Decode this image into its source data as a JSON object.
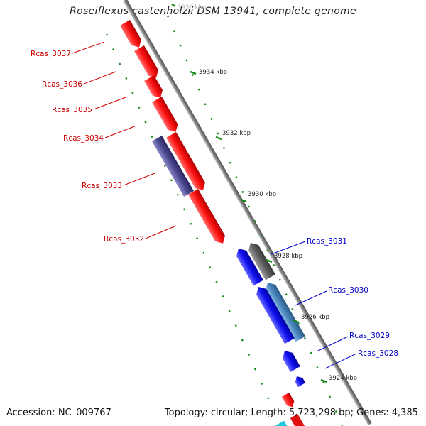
{
  "title": "Roseiflexus castenholzii DSM 13941, complete genome",
  "footer": {
    "accession": "Accession: NC_009767",
    "topology": "Topology: circular; Length: 5,723,298 bp; Genes: 4,385"
  },
  "colors": {
    "forward_gene": "#ff1010",
    "reverse_gene": "#1010f0",
    "forward_label": "#cc0000",
    "reverse_label": "#0000cc",
    "tick": "#1a8a1a",
    "backbone": "#888888"
  },
  "partial_top_tick_label": "3936 kbp",
  "ticks": [
    "3934 kbp",
    "3932 kbp",
    "3930 kbp",
    "3928 kbp",
    "3926 kbp",
    "3924 kbp"
  ],
  "genes_forward": [
    "Rcas_3037",
    "Rcas_3036",
    "Rcas_3035",
    "Rcas_3034",
    "Rcas_3033",
    "Rcas_3032"
  ],
  "genes_reverse": [
    "Rcas_3031",
    "Rcas_3030",
    "Rcas_3029",
    "Rcas_3028"
  ]
}
